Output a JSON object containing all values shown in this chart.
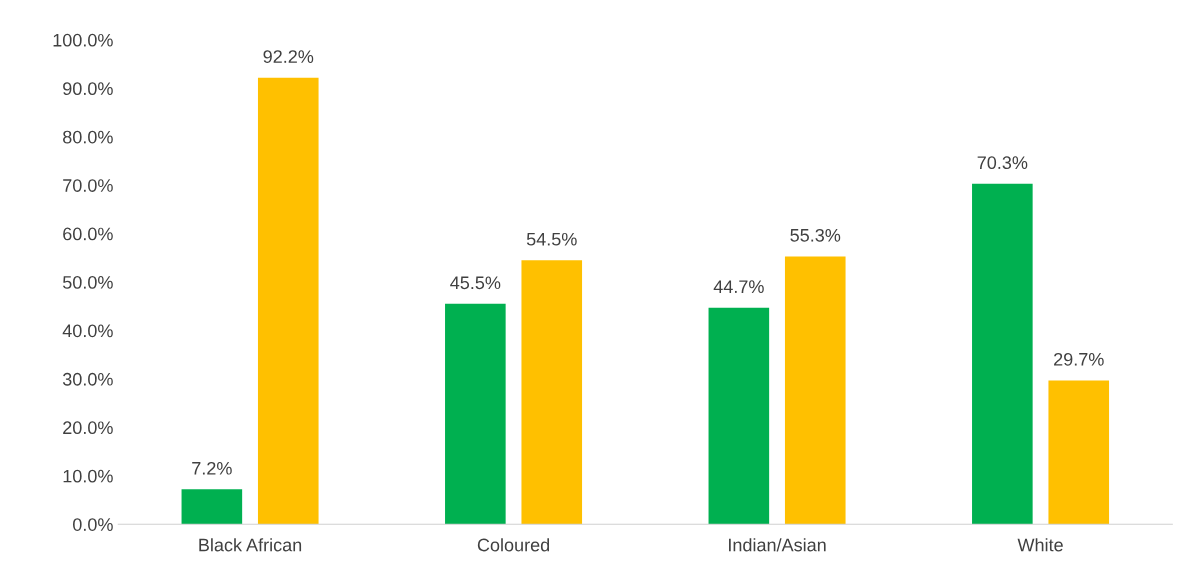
{
  "chart_data": {
    "type": "bar",
    "categories": [
      "Black African",
      "Coloured",
      "Indian/Asian",
      "White"
    ],
    "series": [
      {
        "color": "#00b050",
        "values": [
          7.2,
          45.5,
          44.7,
          70.3
        ],
        "value_labels": [
          "7.2%",
          "45.5%",
          "44.7%",
          "70.3%"
        ]
      },
      {
        "color": "#ffc000",
        "values": [
          92.2,
          54.5,
          55.3,
          29.7
        ],
        "value_labels": [
          "92.2%",
          "54.5%",
          "55.3%",
          "29.7%"
        ]
      }
    ],
    "ylim": [
      0,
      100
    ],
    "yticks": [
      {
        "value": 0,
        "label": "0.0%"
      },
      {
        "value": 10,
        "label": "10.0%"
      },
      {
        "value": 20,
        "label": "20.0%"
      },
      {
        "value": 30,
        "label": "30.0%"
      },
      {
        "value": 40,
        "label": "40.0%"
      },
      {
        "value": 50,
        "label": "50.0%"
      },
      {
        "value": 60,
        "label": "60.0%"
      },
      {
        "value": 70,
        "label": "70.0%"
      },
      {
        "value": 80,
        "label": "80.0%"
      },
      {
        "value": 90,
        "label": "90.0%"
      },
      {
        "value": 100,
        "label": "100.0%"
      }
    ],
    "grid": false,
    "legend": false
  }
}
